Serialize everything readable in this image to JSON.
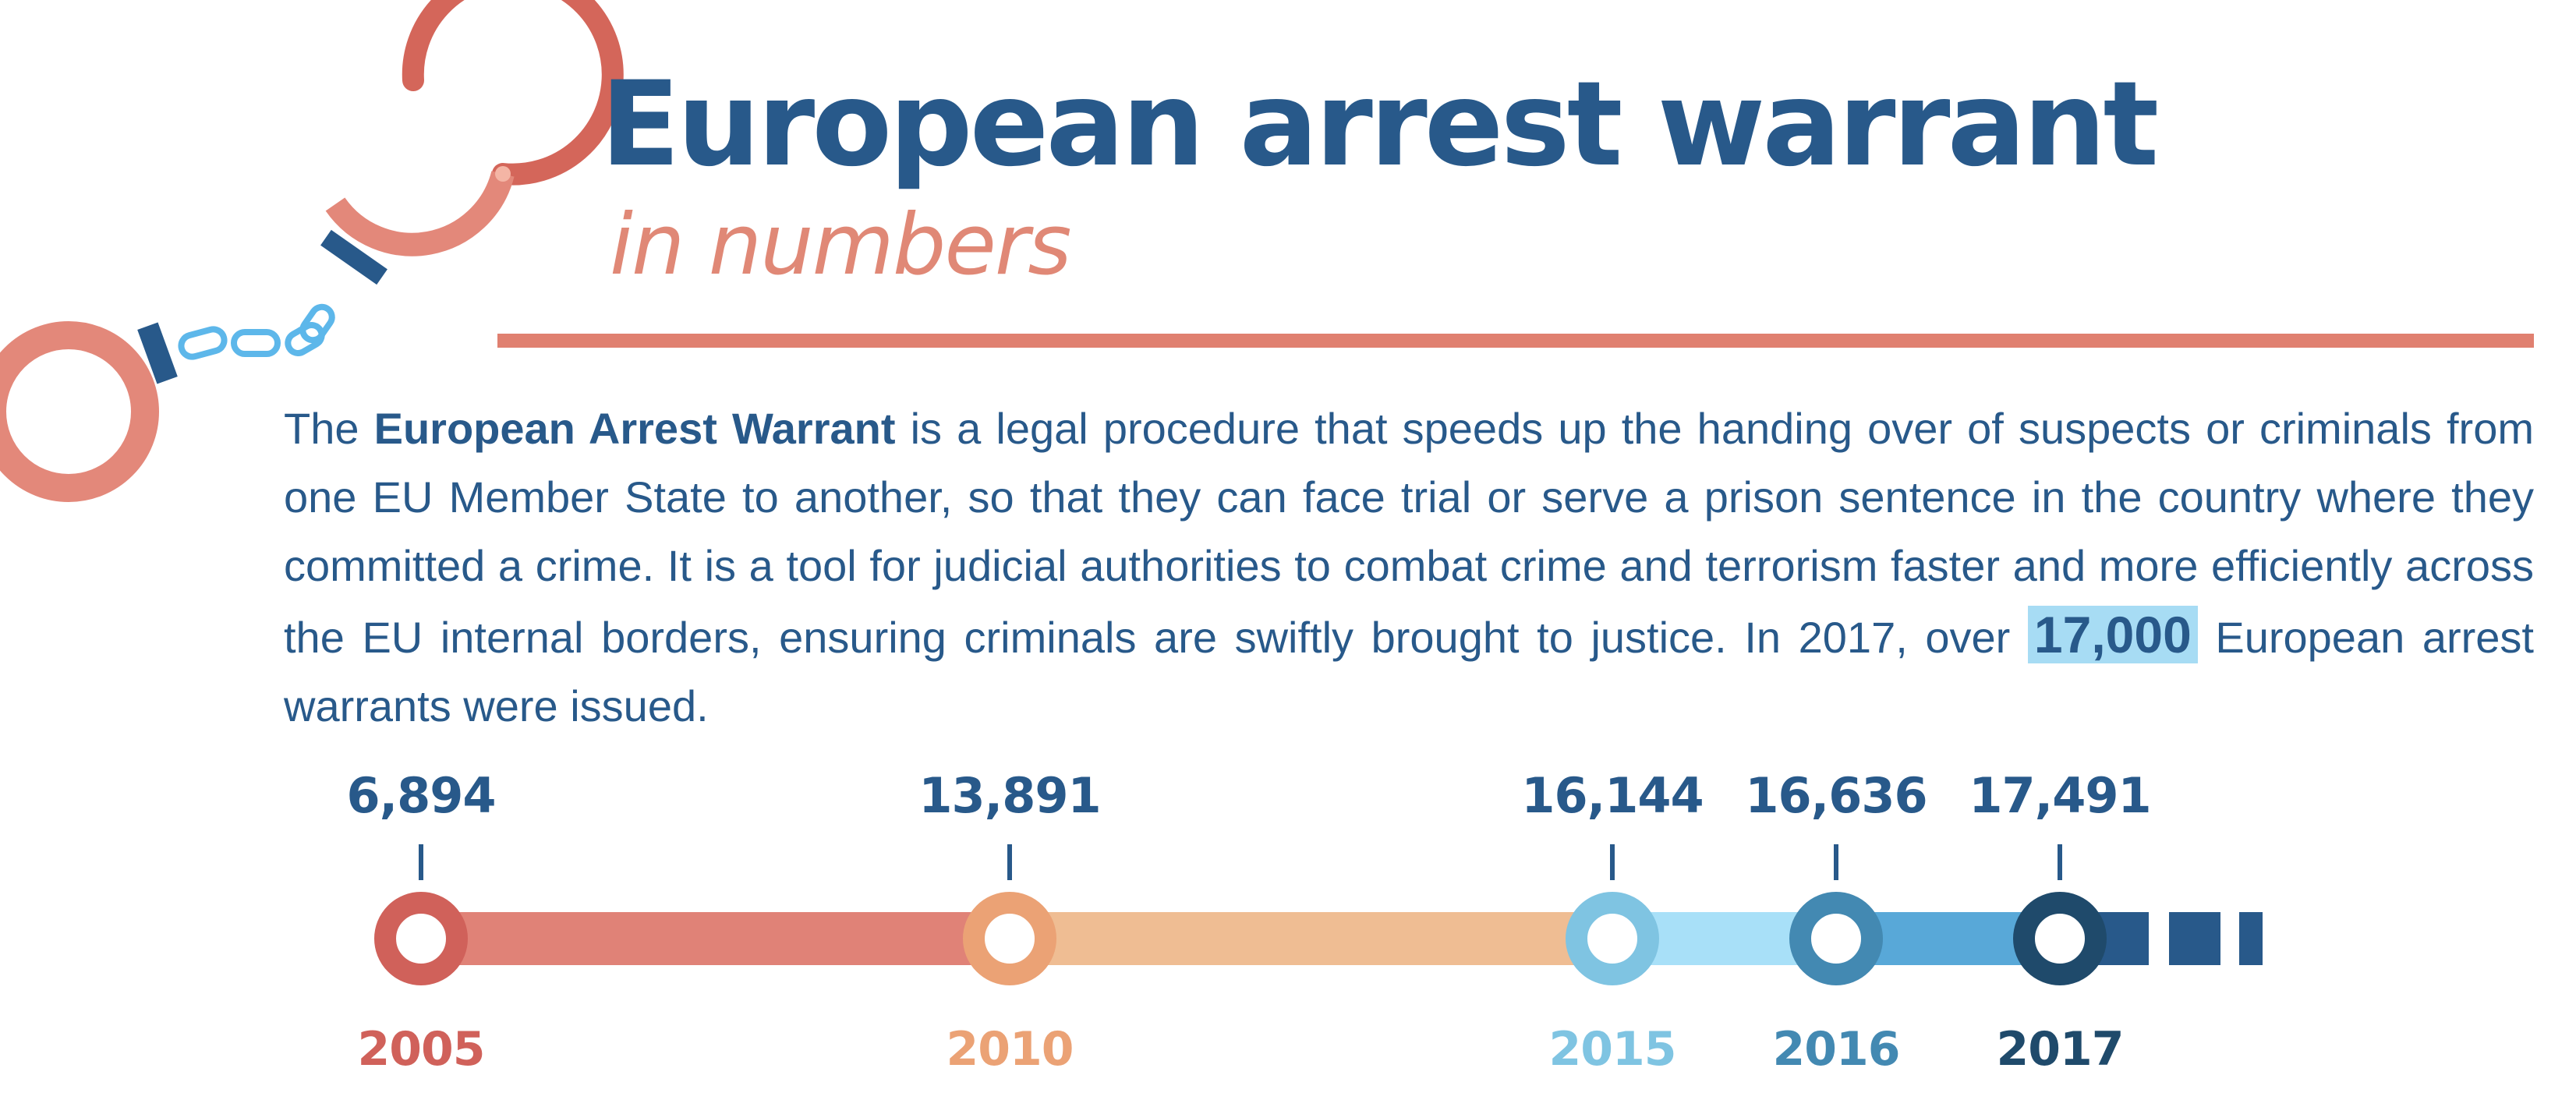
{
  "header": {
    "title": "European arrest warrant",
    "subtitle": "in numbers"
  },
  "intro": {
    "lead": "The ",
    "emphasis": "European Arrest Warrant",
    "body": " is a legal procedure that speeds up the handing over of suspects or criminals from one EU Member State to another, so that they can face trial or serve a prison sentence in the country where they committed a crime. It is a tool for judicial authorities to combat crime and terrorism faster and more efficiently across the EU internal borders, ensuring criminals are swiftly brought to justice. In 2017, over ",
    "highlight": "17,000",
    "tail": " European arrest warrants were issued."
  },
  "icons": {
    "decoration": "handcuffs-icon"
  },
  "timeline": {
    "points": [
      {
        "year": "2005",
        "value": "6,894",
        "color": "#d0615a",
        "bar_color": "#e08277"
      },
      {
        "year": "2010",
        "value": "13,891",
        "color": "#eba275",
        "bar_color": "#efbd93"
      },
      {
        "year": "2015",
        "value": "16,144",
        "color": "#7fc4e2",
        "bar_color": "#a8e0f8"
      },
      {
        "year": "2016",
        "value": "16,636",
        "color": "#4389b2",
        "bar_color": "#58a8d8"
      },
      {
        "year": "2017",
        "value": "17,491",
        "color": "#1f4a6b",
        "bar_color": "#28598a"
      }
    ]
  },
  "colors": {
    "title": "#28598a",
    "subtitle": "#e08876",
    "accent_rule": "#e08070",
    "text": "#28598a",
    "highlight": "#a7dcf4"
  }
}
